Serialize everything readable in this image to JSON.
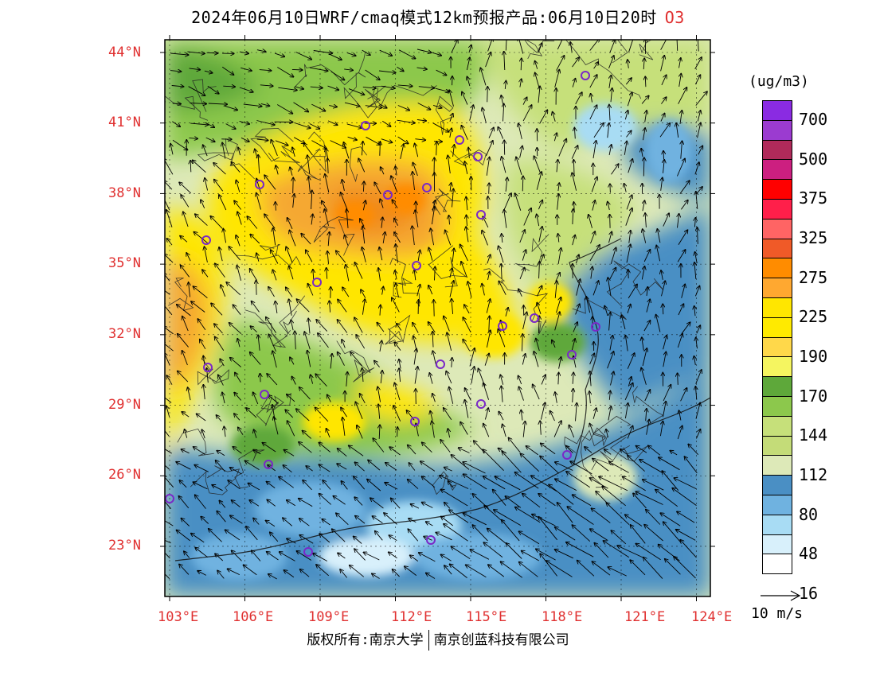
{
  "title": {
    "text": "2024年06月10日WRF/cmaq模式12km预报产品:06月10日20时",
    "species": "O3"
  },
  "map": {
    "lat_labels": [
      "44°N",
      "41°N",
      "38°N",
      "35°N",
      "32°N",
      "29°N",
      "26°N",
      "23°N"
    ],
    "lon_labels": [
      "103°E",
      "106°E",
      "109°E",
      "112°E",
      "115°E",
      "118°E",
      "121°E",
      "124°E"
    ],
    "colors": {
      "sea": "#4a8fc4",
      "low": "#6fb2e0",
      "green": "#8cc84c",
      "dark_green": "#5ea83a",
      "light_green": "#c6e07a",
      "pale": "#dde9b8",
      "yellow": "#ffe600",
      "orange": "#f5a830",
      "deep_orange": "#f08a1c"
    },
    "city_marker_color": "#7a28c8"
  },
  "legend": {
    "unit": "(ug/m3)",
    "bins": [
      {
        "color": "#8a2be2"
      },
      {
        "color": "#9b3bd0"
      },
      {
        "color": "#b02a5a"
      },
      {
        "color": "#cc1f80"
      },
      {
        "color": "#ff0000"
      },
      {
        "color": "#ff1f4a"
      },
      {
        "color": "#ff6464"
      },
      {
        "color": "#f05a28"
      },
      {
        "color": "#ff8c00"
      },
      {
        "color": "#ffa830"
      },
      {
        "color": "#ffe600"
      },
      {
        "color": "#ffea00"
      },
      {
        "color": "#ffd84a"
      },
      {
        "color": "#f5f560"
      },
      {
        "color": "#5ea83a"
      },
      {
        "color": "#8cc84c"
      },
      {
        "color": "#c6e07a"
      },
      {
        "color": "#c4dc78"
      },
      {
        "color": "#dde9b8"
      },
      {
        "color": "#4a8fc4"
      },
      {
        "color": "#6fb2e0"
      },
      {
        "color": "#a8dcf4"
      },
      {
        "color": "#d8f0fb"
      },
      {
        "color": "#ffffff"
      }
    ],
    "labels": [
      "700",
      "500",
      "375",
      "325",
      "275",
      "225",
      "190",
      "170",
      "144",
      "112",
      "80",
      "48",
      "16"
    ]
  },
  "wind_reference": {
    "label": "10 m/s"
  },
  "copyright": {
    "left": "版权所有:南京大学",
    "right": "南京创蓝科技有限公司"
  }
}
